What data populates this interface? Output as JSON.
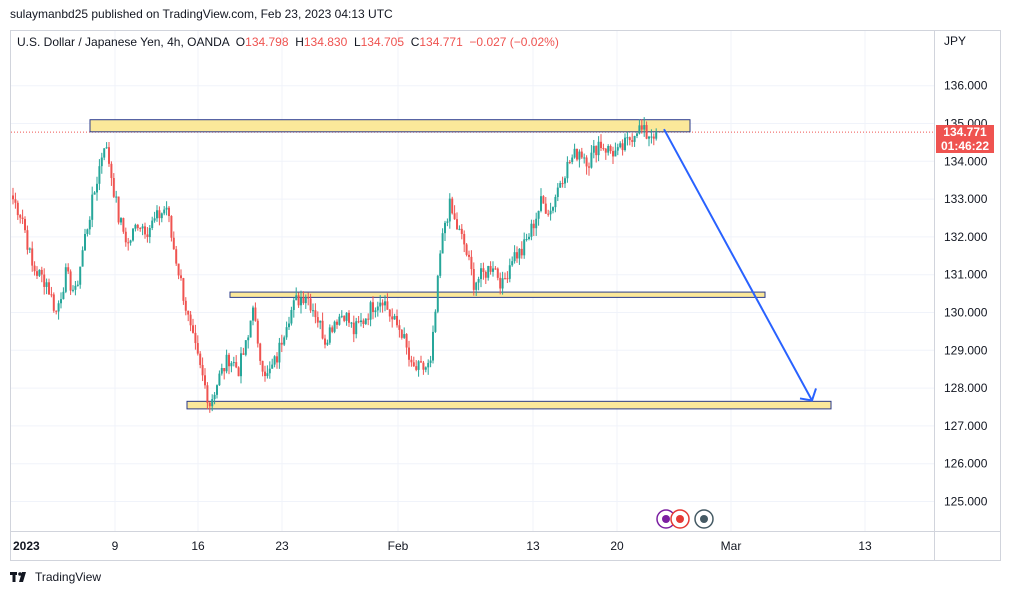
{
  "publisher_line": "sulaymanbd25 published on TradingView.com, Feb 23, 2023 04:13 UTC",
  "legend": {
    "symbol": "U.S. Dollar / Japanese Yen, 4h, OANDA",
    "open_label": "O",
    "open": "134.798",
    "high_label": "H",
    "high": "134.830",
    "low_label": "L",
    "low": "134.705",
    "close_label": "C",
    "close": "134.771",
    "change": "−0.027 (−0.02%)"
  },
  "price_scale": {
    "currency": "JPY",
    "current_price": "134.771",
    "countdown": "01:46:22"
  },
  "footer": {
    "brand": "TradingView"
  },
  "colors": {
    "up": "#26a69a",
    "down": "#ef5350",
    "zone_fill": "#fbe89a",
    "zone_border": "#2a3a8a",
    "arrow": "#2962ff"
  },
  "chart_data": {
    "type": "candlestick",
    "symbol": "USDJPY",
    "timeframe": "4h",
    "y_ticks": [
      "125.000",
      "126.000",
      "127.000",
      "128.000",
      "129.000",
      "130.000",
      "131.000",
      "132.000",
      "133.000",
      "134.000",
      "135.000",
      "136.000"
    ],
    "x_ticks": [
      "2023",
      "9",
      "16",
      "23",
      "Feb",
      "13",
      "20",
      "Mar",
      "13"
    ],
    "ylim": [
      124.2,
      137.3
    ],
    "current_price": 134.771,
    "grid": true,
    "series_path": [
      [
        0,
        133.0
      ],
      [
        2,
        132.5
      ],
      [
        4,
        131.2
      ],
      [
        7,
        130.8
      ],
      [
        9,
        130.0
      ],
      [
        11,
        131.0
      ],
      [
        13,
        130.5
      ],
      [
        15,
        132.0
      ],
      [
        17,
        133.2
      ],
      [
        19,
        134.5
      ],
      [
        20,
        134.0
      ],
      [
        22,
        132.5
      ],
      [
        24,
        131.8
      ],
      [
        26,
        132.4
      ],
      [
        28,
        132.2
      ],
      [
        30,
        132.5
      ],
      [
        32,
        132.8
      ],
      [
        33,
        132.0
      ],
      [
        35,
        130.8
      ],
      [
        37,
        129.5
      ],
      [
        39,
        128.5
      ],
      [
        41,
        127.6
      ],
      [
        43,
        128.3
      ],
      [
        45,
        128.8
      ],
      [
        47,
        128.5
      ],
      [
        49,
        129.3
      ],
      [
        50,
        130.3
      ],
      [
        51,
        129.0
      ],
      [
        53,
        128.3
      ],
      [
        55,
        128.8
      ],
      [
        57,
        129.8
      ],
      [
        59,
        130.3
      ],
      [
        61,
        130.5
      ],
      [
        63,
        130.0
      ],
      [
        65,
        129.3
      ],
      [
        67,
        129.8
      ],
      [
        69,
        130.0
      ],
      [
        71,
        129.5
      ],
      [
        73,
        129.8
      ],
      [
        75,
        130.2
      ],
      [
        77,
        130.4
      ],
      [
        79,
        129.8
      ],
      [
        81,
        129.5
      ],
      [
        83,
        128.5
      ],
      [
        85,
        128.5
      ],
      [
        87,
        128.6
      ],
      [
        88,
        130.0
      ],
      [
        89,
        131.5
      ],
      [
        90,
        132.4
      ],
      [
        91,
        132.8
      ],
      [
        92,
        132.4
      ],
      [
        94,
        131.8
      ],
      [
        96,
        130.8
      ],
      [
        98,
        131.0
      ],
      [
        100,
        131.3
      ],
      [
        102,
        130.7
      ],
      [
        104,
        131.5
      ],
      [
        106,
        131.6
      ],
      [
        108,
        132.2
      ],
      [
        110,
        132.9
      ],
      [
        112,
        132.7
      ],
      [
        114,
        133.5
      ],
      [
        116,
        134.0
      ],
      [
        118,
        134.3
      ],
      [
        120,
        134.0
      ],
      [
        122,
        134.5
      ],
      [
        124,
        134.3
      ],
      [
        126,
        134.2
      ],
      [
        128,
        134.5
      ],
      [
        130,
        134.9
      ],
      [
        132,
        134.7
      ],
      [
        134,
        134.77
      ]
    ],
    "zones": [
      {
        "low": 134.78,
        "high": 135.1
      },
      {
        "low": 130.4,
        "high": 130.54
      },
      {
        "low": 127.45,
        "high": 127.65
      }
    ],
    "projection_arrow": {
      "from_price": 134.85,
      "to_price": 127.7
    }
  }
}
